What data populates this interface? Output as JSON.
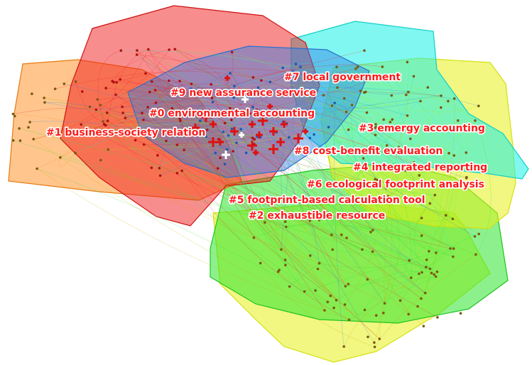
{
  "palette": {
    "label": "#ff1a1a",
    "red": "#f01c1c",
    "orange": "#ff8c1a",
    "cyan": "#19f0e6",
    "yellow": "#e6f01a",
    "green": "#2ee62e",
    "blue": "#2f7fe6",
    "lime": "#9cf01a"
  },
  "clusters": [
    {
      "id": 0,
      "label": "#0 environmental accounting",
      "color": "#f01c1c"
    },
    {
      "id": 1,
      "label": "#1 business-society relation",
      "color": "#ff8c1a"
    },
    {
      "id": 2,
      "label": "#2 exhaustible resource",
      "color": "#e6f01a"
    },
    {
      "id": 3,
      "label": "#3 emergy accounting",
      "color": "#19f0e6"
    },
    {
      "id": 4,
      "label": "#4 integrated reporting",
      "color": "#2ee62e"
    },
    {
      "id": 5,
      "label": "#5 footprint-based calculation tool",
      "color": "#2ee62e"
    },
    {
      "id": 6,
      "label": "#6 ecological footprint analysis",
      "color": "#e6f01a"
    },
    {
      "id": 7,
      "label": "#7 local government",
      "color": "#2f7fe6"
    },
    {
      "id": 8,
      "label": "#8 cost-benefit evaluation",
      "color": "#9cf01a"
    },
    {
      "id": 9,
      "label": "#9 new assurance service",
      "color": "#2f7fe6"
    }
  ]
}
